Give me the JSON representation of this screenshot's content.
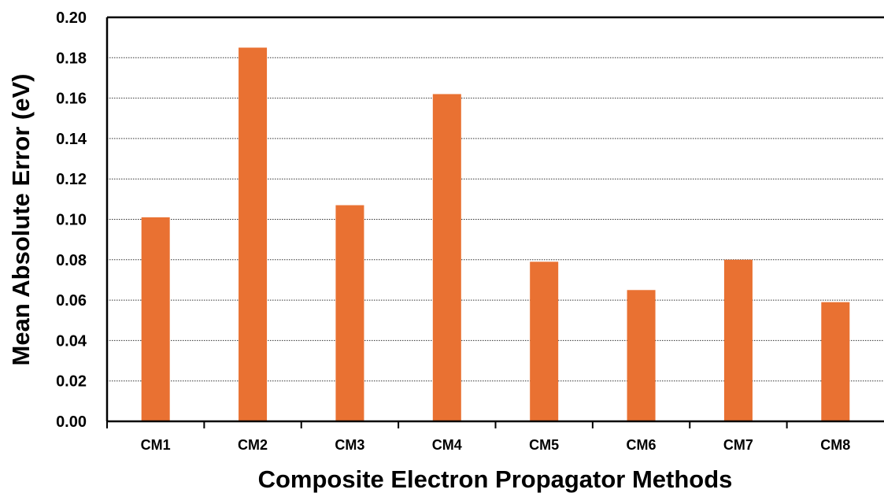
{
  "chart_data": {
    "type": "bar",
    "title": "",
    "xlabel": "Composite Electron Propagator Methods",
    "ylabel": "Mean Absolute Error (eV)",
    "categories": [
      "CM1",
      "CM2",
      "CM3",
      "CM4",
      "CM5",
      "CM6",
      "CM7",
      "CM8"
    ],
    "values": [
      0.101,
      0.185,
      0.107,
      0.162,
      0.079,
      0.065,
      0.08,
      0.059
    ],
    "ylim": [
      0,
      0.2
    ],
    "yticks": [
      "0.00",
      "0.02",
      "0.04",
      "0.06",
      "0.08",
      "0.10",
      "0.12",
      "0.14",
      "0.16",
      "0.18",
      "0.20"
    ],
    "grid": true,
    "legend": "none",
    "bar_color": "#E97132"
  }
}
